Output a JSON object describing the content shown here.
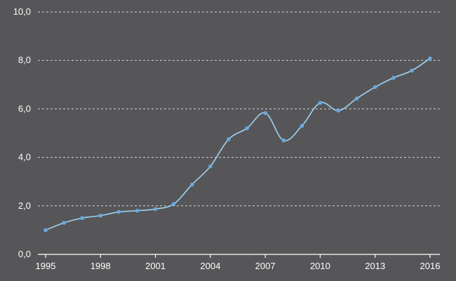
{
  "chart_data": {
    "type": "line",
    "title": "",
    "xlabel": "",
    "ylabel": "",
    "ylim": [
      0,
      10
    ],
    "xlim": [
      1995,
      2016
    ],
    "grid": true,
    "y_ticks": [
      "0,0",
      "2,0",
      "4,0",
      "6,0",
      "8,0",
      "10,0"
    ],
    "x_ticks": [
      "1995",
      "1998",
      "2001",
      "2004",
      "2007",
      "2010",
      "2013",
      "2016"
    ],
    "series": [
      {
        "x": [
          1995,
          1996,
          1997,
          1998,
          1999,
          2000,
          2001,
          2002,
          2003,
          2004,
          2005,
          2006,
          2007,
          2008,
          2009,
          2010,
          2011,
          2012,
          2013,
          2014,
          2015,
          2016
        ],
        "values": [
          1.0,
          1.3,
          1.5,
          1.6,
          1.75,
          1.8,
          1.87,
          2.08,
          2.88,
          3.63,
          4.75,
          5.2,
          5.83,
          4.7,
          5.3,
          6.25,
          5.93,
          6.43,
          6.9,
          7.28,
          7.58,
          8.08
        ]
      }
    ],
    "colors": {
      "background": "#565659",
      "line": "#9ed3f0",
      "marker": "#6aa8e0",
      "grid": "#d4d4d6",
      "text": "#ffffff"
    }
  }
}
